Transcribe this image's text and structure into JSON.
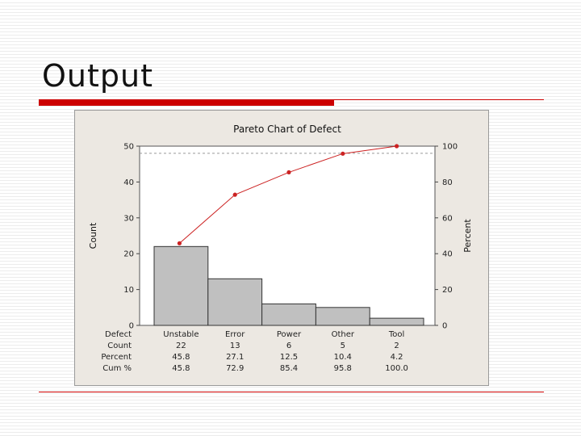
{
  "slide": {
    "title": "Output"
  },
  "chart_data": {
    "type": "bar",
    "title": "Pareto Chart of Defect",
    "ylabel": "Count",
    "y2label": "Percent",
    "ylim": [
      0,
      50
    ],
    "y2lim": [
      0,
      100
    ],
    "yticks": [
      "50",
      "40",
      "30",
      "20",
      "10",
      "0"
    ],
    "y2ticks": [
      "100",
      "80",
      "60",
      "40",
      "20",
      "0"
    ],
    "categories": [
      "Unstable",
      "Error",
      "Power",
      "Other",
      "Tool"
    ],
    "series": [
      {
        "type": "bar",
        "values": [
          22,
          13,
          6,
          5,
          2
        ]
      },
      {
        "type": "line",
        "axis": "right",
        "values": [
          45.8,
          72.9,
          85.4,
          95.8,
          100.0
        ]
      }
    ],
    "table": {
      "row_labels": [
        "Defect",
        "Count",
        "Percent",
        "Cum %"
      ],
      "count": [
        "22",
        "13",
        "6",
        "5",
        "2"
      ],
      "percent": [
        "45.8",
        "27.1",
        "12.5",
        "10.4",
        "4.2"
      ],
      "cum": [
        "45.8",
        "72.9",
        "85.4",
        "95.8",
        "100.0"
      ]
    },
    "colors": {
      "bar": "#c0c0c0",
      "line": "#cc2222",
      "panel": "#ece8e2"
    },
    "grid": "dashed-at-top"
  }
}
